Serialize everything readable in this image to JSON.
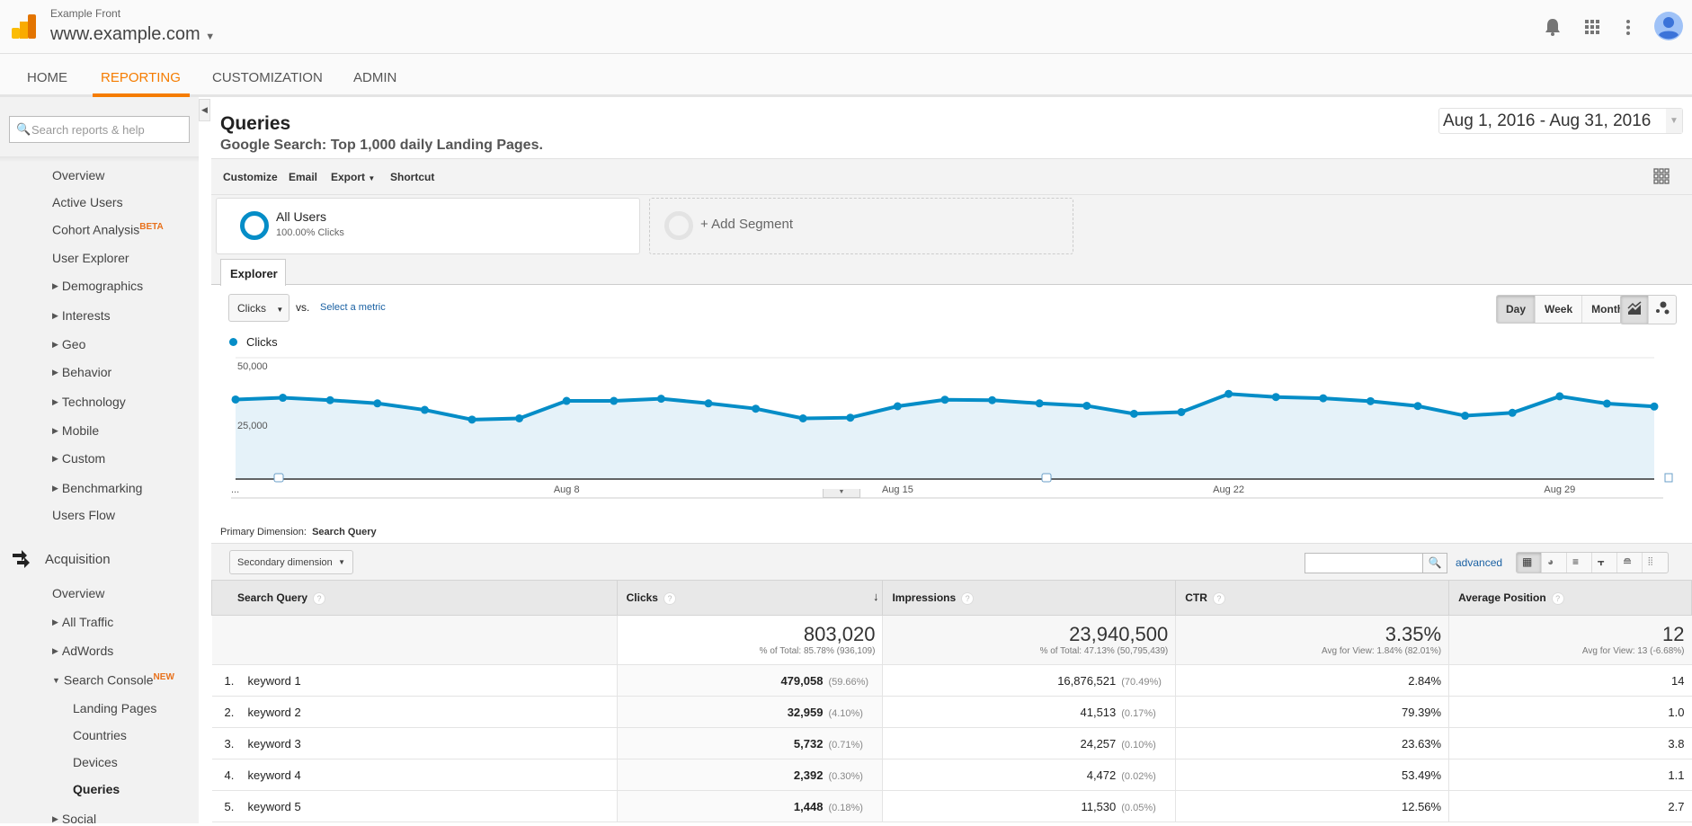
{
  "header": {
    "account": "Example Front",
    "property": "www.example.com",
    "icons": [
      "bell-icon",
      "apps-grid-icon",
      "more-vert-icon",
      "avatar"
    ]
  },
  "nav": {
    "tabs": [
      "HOME",
      "REPORTING",
      "CUSTOMIZATION",
      "ADMIN"
    ],
    "active": "REPORTING"
  },
  "sidebar": {
    "search_placeholder": "Search reports & help",
    "audience": [
      {
        "label": "Overview"
      },
      {
        "label": "Active Users"
      },
      {
        "label": "Cohort Analysis",
        "badge": "BETA"
      },
      {
        "label": "User Explorer"
      },
      {
        "label": "Demographics",
        "expandable": true
      },
      {
        "label": "Interests",
        "expandable": true
      },
      {
        "label": "Geo",
        "expandable": true
      },
      {
        "label": "Behavior",
        "expandable": true
      },
      {
        "label": "Technology",
        "expandable": true
      },
      {
        "label": "Mobile",
        "expandable": true
      },
      {
        "label": "Custom",
        "expandable": true
      },
      {
        "label": "Benchmarking",
        "expandable": true
      },
      {
        "label": "Users Flow"
      }
    ],
    "acquisition": {
      "label": "Acquisition",
      "items": [
        {
          "label": "Overview"
        },
        {
          "label": "All Traffic",
          "expandable": true
        },
        {
          "label": "AdWords",
          "expandable": true
        },
        {
          "label": "Search Console",
          "badge": "NEW",
          "expanded": true
        },
        {
          "label": "Landing Pages",
          "sub": true
        },
        {
          "label": "Countries",
          "sub": true
        },
        {
          "label": "Devices",
          "sub": true
        },
        {
          "label": "Queries",
          "sub": true,
          "active": true
        },
        {
          "label": "Social",
          "expandable": true
        }
      ]
    }
  },
  "report": {
    "title": "Queries",
    "subtitle": "Google Search: Top 1,000 daily Landing Pages.",
    "date_range": "Aug 1, 2016 - Aug 31, 2016"
  },
  "toolbar": {
    "customize": "Customize",
    "email": "Email",
    "export": "Export",
    "shortcut": "Shortcut"
  },
  "segments": {
    "all_users": "All Users",
    "all_users_sub": "100.00% Clicks",
    "add": "+ Add Segment"
  },
  "explorer": {
    "tab": "Explorer",
    "metric": "Clicks",
    "vs": "vs.",
    "select_metric": "Select a metric",
    "periods": [
      "Day",
      "Week",
      "Month"
    ],
    "active_period": "Day"
  },
  "chart_data": {
    "type": "line",
    "series": [
      {
        "name": "Clicks",
        "color": "#058dc7",
        "values": [
          32800,
          33500,
          32500,
          31200,
          28500,
          24500,
          25000,
          32200,
          32200,
          33100,
          31200,
          29000,
          25000,
          25300,
          30000,
          32700,
          32500,
          31200,
          30200,
          26900,
          27600,
          35100,
          33800,
          33300,
          32100,
          30100,
          26100,
          27300,
          34100,
          31100,
          29900
        ]
      }
    ],
    "x": [
      "Aug 1",
      "Aug 2",
      "Aug 3",
      "Aug 4",
      "Aug 5",
      "Aug 6",
      "Aug 7",
      "Aug 8",
      "Aug 9",
      "Aug 10",
      "Aug 11",
      "Aug 12",
      "Aug 13",
      "Aug 14",
      "Aug 15",
      "Aug 16",
      "Aug 17",
      "Aug 18",
      "Aug 19",
      "Aug 20",
      "Aug 21",
      "Aug 22",
      "Aug 23",
      "Aug 24",
      "Aug 25",
      "Aug 26",
      "Aug 27",
      "Aug 28",
      "Aug 29",
      "Aug 30",
      "Aug 31"
    ],
    "xticks": [
      "Aug 8",
      "Aug 15",
      "Aug 22",
      "Aug 29"
    ],
    "yticks": [
      "50,000",
      "25,000"
    ],
    "ylim": [
      0,
      50000
    ],
    "first_label": "...",
    "grid": true
  },
  "table": {
    "primary_dimension_label": "Primary Dimension:",
    "primary_dimension": "Search Query",
    "secondary_dimension": "Secondary dimension",
    "advanced": "advanced",
    "columns": [
      "Search Query",
      "Clicks",
      "Impressions",
      "CTR",
      "Average Position"
    ],
    "totals": [
      {
        "value": "803,020",
        "sub": "% of Total: 85.78% (936,109)"
      },
      {
        "value": "23,940,500",
        "sub": "% of Total: 47.13% (50,795,439)"
      },
      {
        "value": "3.35%",
        "sub": "Avg for View: 1.84% (82.01%)"
      },
      {
        "value": "12",
        "sub": "Avg for View: 13 (-6.68%)"
      }
    ],
    "rows": [
      {
        "n": "1.",
        "q": "keyword 1",
        "clicks": "479,058",
        "clicks_pct": "(59.66%)",
        "impr": "16,876,521",
        "impr_pct": "(70.49%)",
        "ctr": "2.84%",
        "pos": "14"
      },
      {
        "n": "2.",
        "q": "keyword 2",
        "clicks": "32,959",
        "clicks_pct": "(4.10%)",
        "impr": "41,513",
        "impr_pct": "(0.17%)",
        "ctr": "79.39%",
        "pos": "1.0"
      },
      {
        "n": "3.",
        "q": "keyword 3",
        "clicks": "5,732",
        "clicks_pct": "(0.71%)",
        "impr": "24,257",
        "impr_pct": "(0.10%)",
        "ctr": "23.63%",
        "pos": "3.8"
      },
      {
        "n": "4.",
        "q": "keyword 4",
        "clicks": "2,392",
        "clicks_pct": "(0.30%)",
        "impr": "4,472",
        "impr_pct": "(0.02%)",
        "ctr": "53.49%",
        "pos": "1.1"
      },
      {
        "n": "5.",
        "q": "keyword 5",
        "clicks": "1,448",
        "clicks_pct": "(0.18%)",
        "impr": "11,530",
        "impr_pct": "(0.05%)",
        "ctr": "12.56%",
        "pos": "2.7"
      }
    ]
  }
}
